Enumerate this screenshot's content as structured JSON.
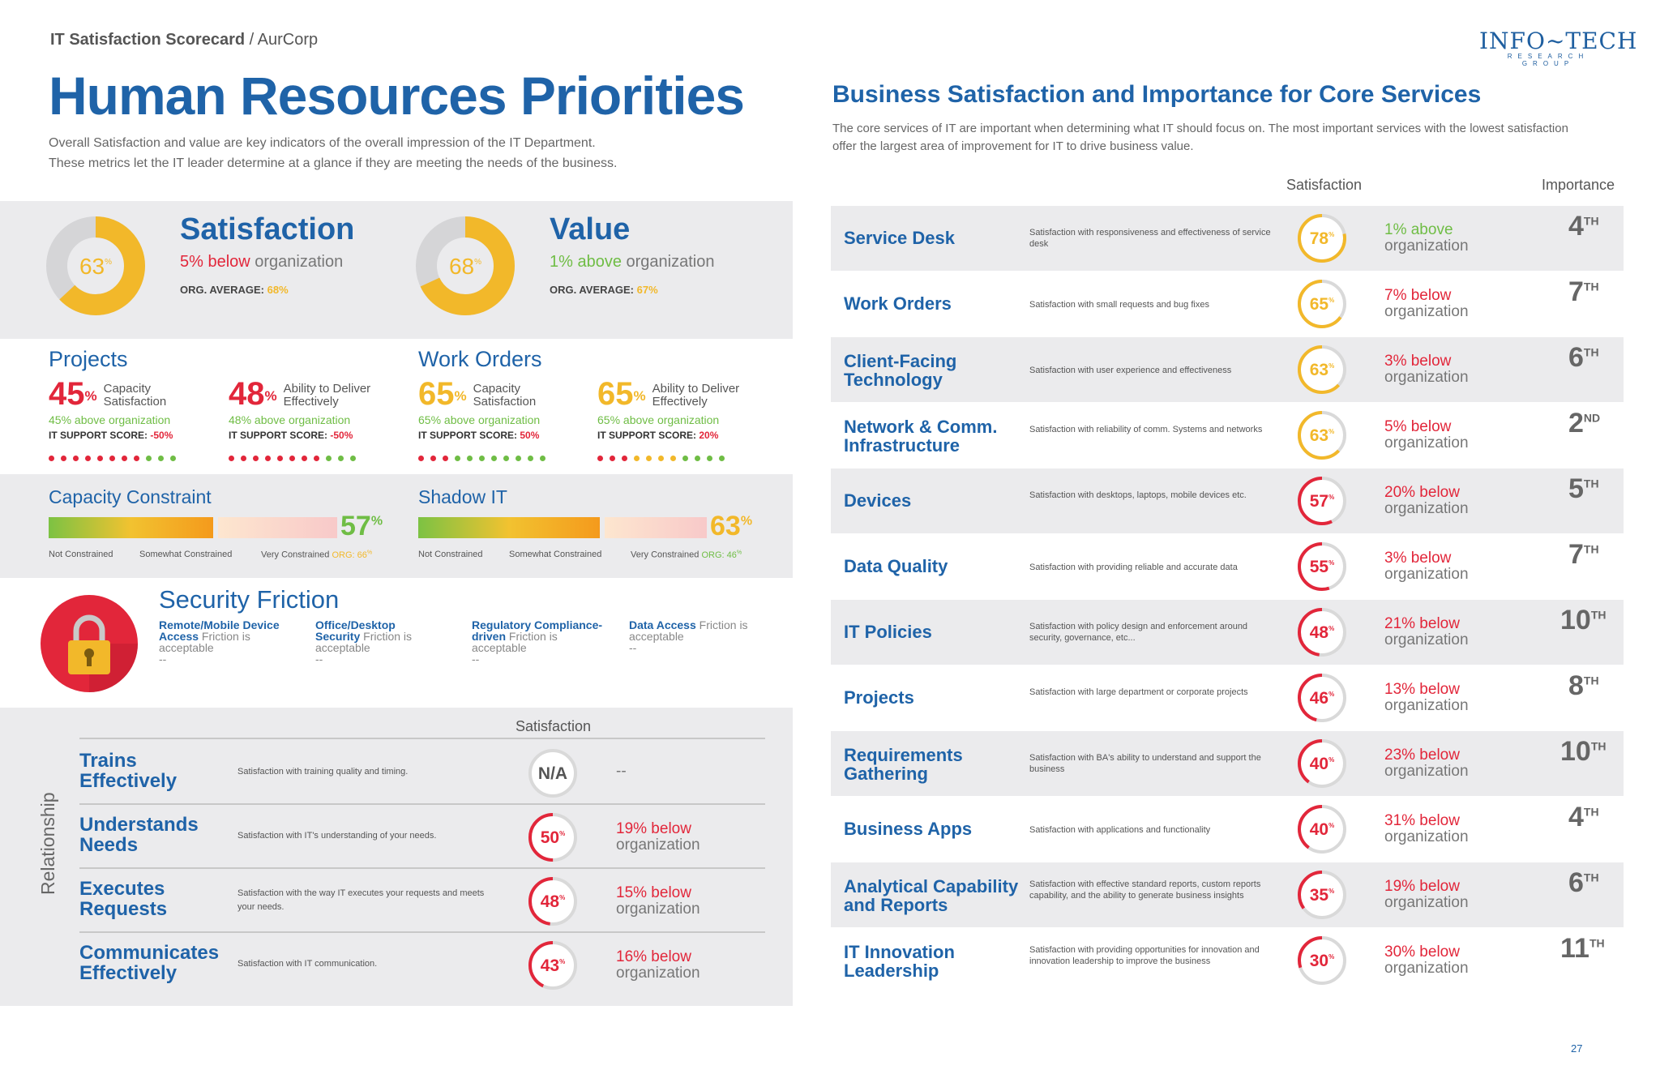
{
  "header": {
    "title_bold": "IT Satisfaction Scorecard",
    "title_sep": " / ",
    "title_org": "AurCorp",
    "logo_main": "INFO~TECH",
    "logo_sub": "RESEARCH GROUP"
  },
  "left": {
    "title": "Human Resources Priorities",
    "intro_1": "Overall Satisfaction and value are key indicators of the overall impression of the IT Department.",
    "intro_2": "These metrics let the IT leader determine at a glance if they are meeting the needs of the business.",
    "satisfaction": {
      "title": "Satisfaction",
      "value": "63",
      "value_fraction": 0.63,
      "cmp_pct": "5% below",
      "cmp_rest": " organization",
      "avg_label": "ORG. AVERAGE: ",
      "avg_value": "68%"
    },
    "value": {
      "title": "Value",
      "value": "68",
      "value_fraction": 0.68,
      "cmp_pct": "1% above",
      "cmp_rest": " organization",
      "avg_label": "ORG. AVERAGE: ",
      "avg_value": "67%"
    },
    "projects": {
      "title": "Projects",
      "items": [
        {
          "pct": "45",
          "label1": "Capacity",
          "label2": "Satisfaction",
          "cmp": "45% above organization",
          "score_label": "IT SUPPORT SCORE: ",
          "score": "-50%",
          "dots": [
            "r",
            "r",
            "r",
            "r",
            "r",
            "r",
            "r",
            "r",
            "g",
            "g",
            "g"
          ]
        },
        {
          "pct": "48",
          "label1": "Ability to Deliver",
          "label2": "Effectively",
          "cmp": "48% above organization",
          "score_label": "IT SUPPORT SCORE: ",
          "score": "-50%",
          "dots": [
            "r",
            "r",
            "r",
            "r",
            "r",
            "r",
            "r",
            "r",
            "g",
            "g",
            "g"
          ]
        }
      ]
    },
    "work_orders": {
      "title": "Work Orders",
      "items": [
        {
          "pct": "65",
          "label1": "Capacity",
          "label2": "Satisfaction",
          "cmp": "65% above organization",
          "score_label": "IT SUPPORT SCORE: ",
          "score": "50%",
          "dots": [
            "r",
            "r",
            "r",
            "g",
            "g",
            "g",
            "g",
            "g",
            "g",
            "g",
            "g"
          ]
        },
        {
          "pct": "65",
          "label1": "Ability to Deliver",
          "label2": "Effectively",
          "cmp": "65% above organization",
          "score_label": "IT SUPPORT SCORE: ",
          "score": "20%",
          "dots": [
            "r",
            "r",
            "r",
            "y",
            "y",
            "y",
            "y",
            "g",
            "g",
            "g",
            "g"
          ]
        }
      ]
    },
    "capacity": {
      "title": "Capacity Constraint",
      "pct": "57",
      "fill": 0.57,
      "l1": "Not Constrained",
      "l2": "Somewhat Constrained",
      "l3": "Very Constrained",
      "org": "ORG: 66",
      "org_sup": "%"
    },
    "shadow": {
      "title": "Shadow IT",
      "pct": "63",
      "fill": 0.63,
      "l1": "Not Constrained",
      "l2": "Somewhat Constrained",
      "l3": "Very Constrained",
      "org": "ORG: 46",
      "org_sup": "%"
    },
    "security": {
      "title": "Security Friction",
      "items": [
        {
          "bold": "Remote/Mobile Device Access",
          "rest": " Friction is acceptable",
          "dash": "--"
        },
        {
          "bold": "Office/Desktop Security",
          "rest": " Friction is acceptable",
          "dash": "--"
        },
        {
          "bold": "Regulatory Compliance-driven",
          "rest": " Friction is acceptable",
          "dash": "--"
        },
        {
          "bold": "Data Access",
          "rest": " Friction is acceptable",
          "dash": "--"
        }
      ]
    },
    "relationship": {
      "axis_label": "Relationship",
      "col_head": "Satisfaction",
      "rows": [
        {
          "name1": "Trains",
          "name2": "Effectively",
          "desc": "Satisfaction with training quality and timing.",
          "value": "N/A",
          "cmp": "--",
          "cmp2": "",
          "na": true
        },
        {
          "name1": "Understands",
          "name2": "Needs",
          "desc": "Satisfaction with IT's understanding of your needs.",
          "value": "50",
          "cmp": "19% below",
          "cmp2": "organization"
        },
        {
          "name1": "Executes",
          "name2": "Requests",
          "desc": "Satisfaction with the way IT executes your requests and meets your needs.",
          "value": "48",
          "cmp": "15% below",
          "cmp2": "organization"
        },
        {
          "name1": "Communicates",
          "name2": "Effectively",
          "desc": "Satisfaction with IT communication.",
          "value": "43",
          "cmp": "16% below",
          "cmp2": "organization"
        }
      ]
    }
  },
  "right": {
    "title": "Business Satisfaction and Importance for Core Services",
    "intro": "The core services of IT are important when determining what IT should focus on. The most important services with the lowest satisfaction offer the largest area of improvement for IT to drive business value.",
    "col_satisfaction": "Satisfaction",
    "col_importance": "Importance",
    "rows": [
      {
        "name1": "Service Desk",
        "name2": "",
        "desc": "Satisfaction with responsiveness and effectiveness of service desk",
        "value": "78",
        "cmp": "1% above",
        "cmp2": "organization",
        "rank": "4",
        "suffix": "TH",
        "color": "#f2b82a"
      },
      {
        "name1": "Work Orders",
        "name2": "",
        "desc": "Satisfaction with small requests and bug fixes",
        "value": "65",
        "cmp": "7% below",
        "cmp2": "organization",
        "rank": "7",
        "suffix": "TH",
        "color": "#f2b82a"
      },
      {
        "name1": "Client-Facing",
        "name2": "Technology",
        "desc": "Satisfaction with user experience and effectiveness",
        "value": "63",
        "cmp": "3% below",
        "cmp2": "organization",
        "rank": "6",
        "suffix": "TH",
        "color": "#f2b82a"
      },
      {
        "name1": "Network & Comm.",
        "name2": "Infrastructure",
        "desc": "Satisfaction with reliability of comm. Systems and networks",
        "value": "63",
        "cmp": "5% below",
        "cmp2": "organization",
        "rank": "2",
        "suffix": "ND",
        "color": "#f2b82a"
      },
      {
        "name1": "Devices",
        "name2": "",
        "desc": "Satisfaction with desktops, laptops, mobile devices etc.",
        "value": "57",
        "cmp": "20% below",
        "cmp2": "organization",
        "rank": "5",
        "suffix": "TH",
        "color": "#e2263a"
      },
      {
        "name1": "Data Quality",
        "name2": "",
        "desc": "Satisfaction with providing reliable and accurate data",
        "value": "55",
        "cmp": "3% below",
        "cmp2": "organization",
        "rank": "7",
        "suffix": "TH",
        "color": "#e2263a"
      },
      {
        "name1": "IT Policies",
        "name2": "",
        "desc": "Satisfaction with policy design and enforcement around security, governance, etc...",
        "value": "48",
        "cmp": "21% below",
        "cmp2": "organization",
        "rank": "10",
        "suffix": "TH",
        "color": "#e2263a"
      },
      {
        "name1": "Projects",
        "name2": "",
        "desc": "Satisfaction with large department or corporate projects",
        "value": "46",
        "cmp": "13% below",
        "cmp2": "organization",
        "rank": "8",
        "suffix": "TH",
        "color": "#e2263a"
      },
      {
        "name1": "Requirements",
        "name2": "Gathering",
        "desc": "Satisfaction with BA's ability to understand and support the business",
        "value": "40",
        "cmp": "23% below",
        "cmp2": "organization",
        "rank": "10",
        "suffix": "TH",
        "color": "#e2263a"
      },
      {
        "name1": "Business Apps",
        "name2": "",
        "desc": "Satisfaction with applications and functionality",
        "value": "40",
        "cmp": "31% below",
        "cmp2": "organization",
        "rank": "4",
        "suffix": "TH",
        "color": "#e2263a"
      },
      {
        "name1": "Analytical Capability",
        "name2": "and Reports",
        "desc": "Satisfaction with effective standard reports, custom reports capability, and the ability to generate business insights",
        "value": "35",
        "cmp": "19% below",
        "cmp2": "organization",
        "rank": "6",
        "suffix": "TH",
        "color": "#e2263a"
      },
      {
        "name1": "IT Innovation",
        "name2": "Leadership",
        "desc": "Satisfaction with providing opportunities for innovation and innovation leadership to improve the business",
        "value": "30",
        "cmp": "30% below",
        "cmp2": "organization",
        "rank": "11",
        "suffix": "TH",
        "color": "#e2263a"
      }
    ]
  },
  "page_number": "27",
  "colors": {
    "blue": "#1f63a8",
    "red": "#e2263a",
    "green": "#6fbd45",
    "yellow": "#f2b82a",
    "grey_band": "#ebebed"
  }
}
